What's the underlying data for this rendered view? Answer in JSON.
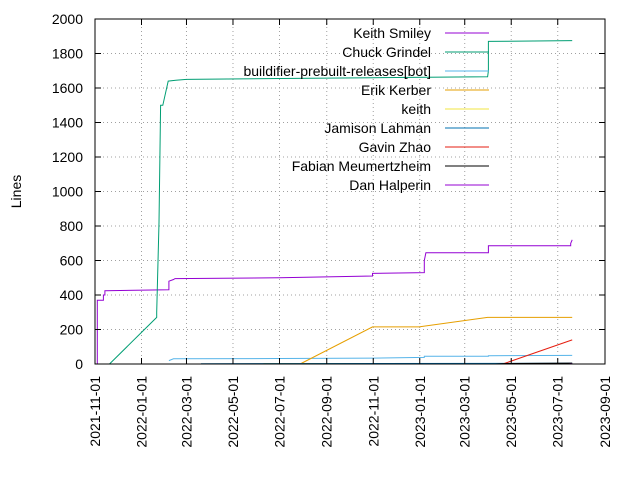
{
  "chart_data": {
    "type": "line",
    "title": "",
    "xlabel": "",
    "ylabel": "Lines",
    "ylim": [
      0,
      2000
    ],
    "xlim": [
      "2021-11-01",
      "2023-09-01"
    ],
    "x_ticks": [
      "2021-11-01",
      "2022-01-01",
      "2022-03-01",
      "2022-05-01",
      "2022-07-01",
      "2022-09-01",
      "2022-11-01",
      "2023-01-01",
      "2023-03-01",
      "2023-05-01",
      "2023-07-01",
      "2023-09-01"
    ],
    "y_ticks": [
      0,
      200,
      400,
      600,
      800,
      1000,
      1200,
      1400,
      1600,
      1800,
      2000
    ],
    "grid": "dotted",
    "legend_position": "top-right",
    "series": [
      {
        "name": "Keith Smiley",
        "color": "#9400d3",
        "points": [
          [
            "2021-11-04",
            0
          ],
          [
            "2021-11-04",
            370
          ],
          [
            "2021-11-12",
            370
          ],
          [
            "2021-11-12",
            400
          ],
          [
            "2021-11-14",
            400
          ],
          [
            "2021-11-14",
            425
          ],
          [
            "2022-02-06",
            430
          ],
          [
            "2022-02-06",
            480
          ],
          [
            "2022-02-12",
            490
          ],
          [
            "2022-02-14",
            495
          ],
          [
            "2022-07-01",
            500
          ],
          [
            "2022-10-31",
            510
          ],
          [
            "2022-10-31",
            525
          ],
          [
            "2023-01-07",
            530
          ],
          [
            "2023-01-07",
            600
          ],
          [
            "2023-01-09",
            645
          ],
          [
            "2023-04-01",
            645
          ],
          [
            "2023-04-01",
            685
          ],
          [
            "2023-07-18",
            685
          ],
          [
            "2023-07-18",
            700
          ],
          [
            "2023-07-20",
            720
          ]
        ]
      },
      {
        "name": "Chuck Grindel",
        "color": "#009e73",
        "points": [
          [
            "2021-11-20",
            0
          ],
          [
            "2022-01-21",
            270
          ],
          [
            "2022-01-21",
            300
          ],
          [
            "2022-01-24",
            820
          ],
          [
            "2022-01-26",
            1500
          ],
          [
            "2022-01-29",
            1500
          ],
          [
            "2022-02-05",
            1640
          ],
          [
            "2022-02-15",
            1645
          ],
          [
            "2022-03-01",
            1650
          ],
          [
            "2022-07-01",
            1655
          ],
          [
            "2022-11-01",
            1660
          ],
          [
            "2023-03-31",
            1665
          ],
          [
            "2023-04-01",
            1700
          ],
          [
            "2023-04-01",
            1870
          ],
          [
            "2023-07-20",
            1875
          ]
        ]
      },
      {
        "name": "buildifier-prebuilt-releases[bot]",
        "color": "#56b4e9",
        "points": [
          [
            "2022-02-06",
            20
          ],
          [
            "2022-02-12",
            30
          ],
          [
            "2022-07-01",
            32
          ],
          [
            "2022-11-01",
            34
          ],
          [
            "2023-01-07",
            38
          ],
          [
            "2023-01-07",
            45
          ],
          [
            "2023-04-01",
            45
          ],
          [
            "2023-04-01",
            48
          ],
          [
            "2023-07-20",
            50
          ]
        ]
      },
      {
        "name": "Erik Kerber",
        "color": "#e69f00",
        "points": [
          [
            "2022-07-28",
            0
          ],
          [
            "2022-10-31",
            215
          ],
          [
            "2022-12-31",
            215
          ],
          [
            "2023-03-31",
            270
          ],
          [
            "2023-07-20",
            270
          ]
        ]
      },
      {
        "name": "keith",
        "color": "#f0e442",
        "points": [
          [
            "2022-06-10",
            3
          ],
          [
            "2023-07-20",
            3
          ]
        ]
      },
      {
        "name": "Jamison Lahman",
        "color": "#0072b2",
        "points": [
          [
            "2022-03-20",
            2
          ],
          [
            "2023-07-20",
            4
          ]
        ]
      },
      {
        "name": "Gavin Zhao",
        "color": "#e51e10",
        "points": [
          [
            "2023-04-20",
            0
          ],
          [
            "2023-07-20",
            140
          ]
        ]
      },
      {
        "name": "Fabian Meumertzheim",
        "color": "#000000",
        "points": [
          [
            "2023-04-10",
            0
          ],
          [
            "2023-04-25",
            3
          ],
          [
            "2023-07-20",
            5
          ]
        ]
      },
      {
        "name": "Dan Halperin",
        "color": "#9400d3",
        "points": [
          [
            "2023-07-15",
            0
          ],
          [
            "2023-07-20",
            2
          ]
        ]
      }
    ]
  }
}
